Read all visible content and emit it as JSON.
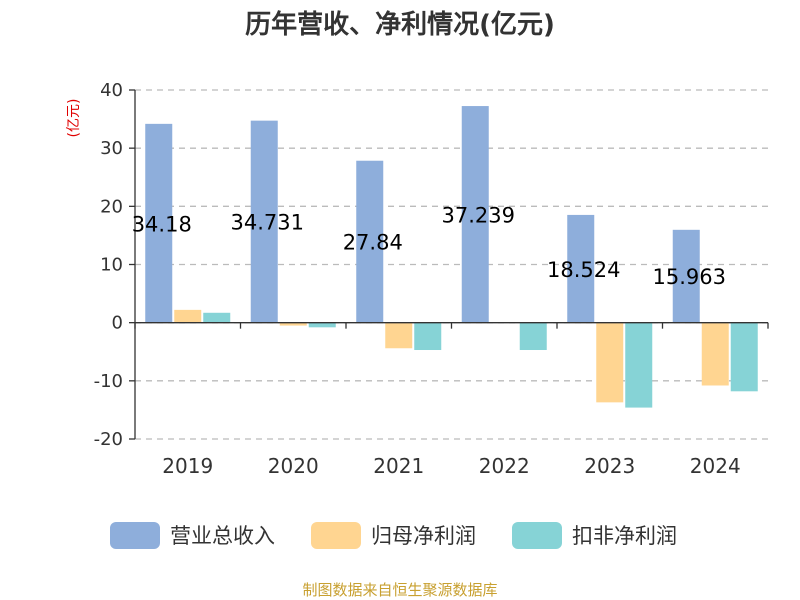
{
  "chart_data": {
    "type": "bar",
    "title": "历年营收、净利情况(亿元)",
    "ylabel": "(亿元)",
    "xlabel": "",
    "categories": [
      "2019",
      "2020",
      "2021",
      "2022",
      "2023",
      "2024"
    ],
    "series": [
      {
        "name": "营业总收入",
        "color": "#8eaedb",
        "values": [
          34.18,
          34.731,
          27.84,
          37.239,
          18.524,
          15.963
        ]
      },
      {
        "name": "归母净利润",
        "color": "#ffd591",
        "values": [
          2.2,
          -0.5,
          -4.4,
          0.1,
          -13.7,
          -10.8
        ]
      },
      {
        "name": "扣非净利润",
        "color": "#86d3d6",
        "values": [
          1.7,
          -0.8,
          -4.7,
          -4.7,
          -14.6,
          -11.8
        ]
      }
    ],
    "data_labels": [
      "34.18",
      "34.731",
      "27.84",
      "37.239",
      "18.524",
      "15.963"
    ],
    "ylim": [
      -20,
      40
    ],
    "yticks": [
      -20,
      -10,
      0,
      10,
      20,
      30,
      40
    ],
    "grid": true,
    "legend_position": "bottom"
  },
  "footer": {
    "source": "制图数据来自恒生聚源数据库"
  }
}
